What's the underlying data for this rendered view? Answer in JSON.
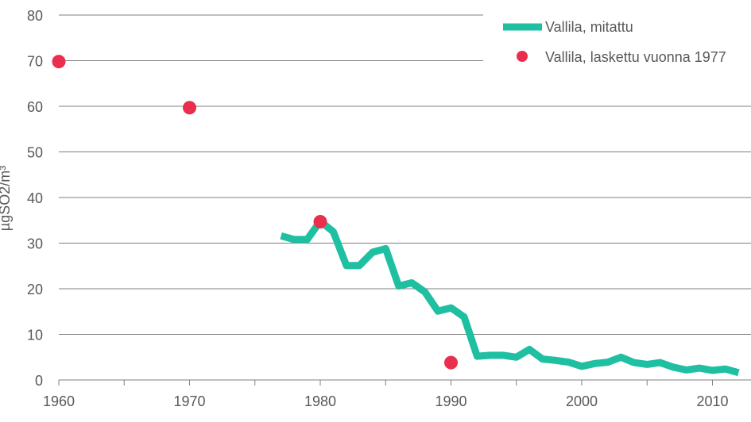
{
  "chart_data": {
    "type": "line",
    "xlabel": "",
    "ylabel": "µgSO2/m³",
    "xlim": [
      1960,
      2012
    ],
    "ylim": [
      0,
      80
    ],
    "x_ticks": [
      "1960",
      "1970",
      "1980",
      "1990",
      "2000",
      "2010"
    ],
    "y_ticks": [
      "0",
      "10",
      "20",
      "30",
      "40",
      "50",
      "60",
      "70",
      "80"
    ],
    "grid": "horizontal",
    "legend_position": "top-right",
    "series": [
      {
        "name": "Vallila, mitattu",
        "type": "line",
        "color": "#1fbfa2",
        "x": [
          1977,
          1978,
          1979,
          1980,
          1981,
          1982,
          1983,
          1984,
          1985,
          1986,
          1987,
          1988,
          1989,
          1990,
          1991,
          1992,
          1993,
          1994,
          1995,
          1996,
          1997,
          1998,
          1999,
          2000,
          2001,
          2002,
          2003,
          2004,
          2005,
          2006,
          2007,
          2008,
          2009,
          2010,
          2011,
          2012
        ],
        "y": [
          31.6,
          30.8,
          30.8,
          34.8,
          32.5,
          25.1,
          25.1,
          28.0,
          28.8,
          20.6,
          21.3,
          19.3,
          15.1,
          15.8,
          13.8,
          5.2,
          5.4,
          5.4,
          5.0,
          6.7,
          4.6,
          4.3,
          3.9,
          3.0,
          3.6,
          3.9,
          5.0,
          3.8,
          3.4,
          3.8,
          2.8,
          2.2,
          2.6,
          2.1,
          2.4,
          1.6
        ]
      },
      {
        "name": "Vallila, laskettu vuonna 1977",
        "type": "scatter",
        "color": "#ea2e4d",
        "x": [
          1960,
          1970,
          1980,
          1990
        ],
        "y": [
          69.8,
          59.7,
          34.7,
          3.8
        ]
      }
    ]
  }
}
